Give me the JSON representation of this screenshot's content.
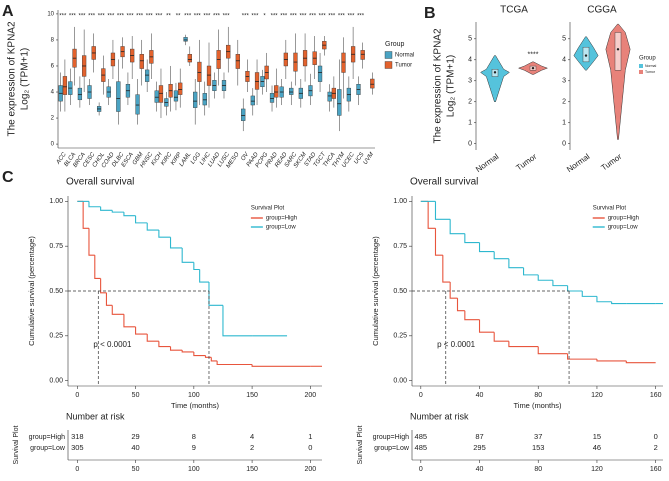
{
  "chart_data": [
    {
      "type": "box",
      "panel_label": "A",
      "ylabel": [
        "The expression of KPNA2",
        "Log₂ (TPM+1)"
      ],
      "categories": [
        "ACC",
        "BLCA",
        "BRCA",
        "CESC",
        "CHOL",
        "COAD",
        "DLBC",
        "ESCA",
        "GBM",
        "HNSC",
        "KICH",
        "KIRC",
        "KIRP",
        "LAML",
        "LGG",
        "LIHC",
        "LUAD",
        "LUSC",
        "MESO",
        "OV",
        "PAAD",
        "PCPG",
        "PRAD",
        "READ",
        "SARC",
        "SKCM",
        "STAD",
        "TGCT",
        "THCA",
        "THYM",
        "UCEC",
        "UCS",
        "UVM"
      ],
      "significance": [
        "***",
        "***",
        "***",
        "***",
        "***",
        "***",
        "***",
        "***",
        "***",
        "***",
        "***",
        "**",
        "**",
        "***",
        "***",
        "***",
        "***",
        "***",
        null,
        "***",
        "***",
        "*",
        "***",
        "***",
        "***",
        "***",
        "***",
        "***",
        "***",
        "***",
        "***",
        "***",
        null
      ],
      "ylim": [
        -0.3,
        10.3
      ],
      "yticks": [
        0,
        2,
        4,
        6,
        8,
        10
      ],
      "legend_title": "Group",
      "series": [
        {
          "name": "Normal",
          "color": "#4aa3c3",
          "values": [
            [
              2.5,
              3.3,
              3.9,
              4.5,
              5.5
            ],
            [
              3.0,
              3.8,
              4.3,
              4.8,
              5.8
            ],
            [
              2.8,
              3.4,
              3.8,
              4.3,
              5.2
            ],
            [
              3.0,
              3.5,
              4.0,
              4.5,
              5.0
            ],
            [
              2.2,
              2.5,
              2.7,
              2.9,
              3.2
            ],
            [
              3.0,
              3.6,
              4.0,
              4.4,
              5.0
            ],
            [
              1.5,
              2.5,
              3.5,
              4.8,
              6.5
            ],
            [
              3.0,
              3.6,
              4.1,
              4.6,
              5.5
            ],
            [
              1.5,
              2.3,
              3.0,
              3.8,
              5.0
            ],
            [
              4.0,
              4.8,
              5.3,
              5.7,
              6.5
            ],
            [
              2.5,
              3.2,
              3.6,
              4.1,
              4.8
            ],
            [
              2.2,
              2.9,
              3.2,
              3.5,
              4.0
            ],
            [
              2.6,
              3.3,
              3.6,
              4.1,
              4.7
            ],
            [
              7.6,
              7.9,
              8.0,
              8.2,
              8.4
            ],
            [
              1.5,
              2.8,
              3.3,
              4.0,
              5.0
            ],
            [
              2.2,
              3.0,
              3.4,
              3.9,
              4.8
            ],
            [
              3.5,
              4.1,
              4.5,
              4.9,
              5.5
            ],
            [
              3.5,
              4.1,
              4.5,
              4.9,
              5.5
            ],
            null,
            [
              1.0,
              1.8,
              2.2,
              2.7,
              3.5
            ],
            [
              2.2,
              3.0,
              3.3,
              3.7,
              4.3
            ],
            [
              3.8,
              4.4,
              4.8,
              5.2,
              5.7
            ],
            [
              2.5,
              3.2,
              3.5,
              3.9,
              4.5
            ],
            [
              3.0,
              3.6,
              4.0,
              4.4,
              5.0
            ],
            [
              3.0,
              3.8,
              4.0,
              4.3,
              4.8
            ],
            [
              2.8,
              3.5,
              3.9,
              4.3,
              5.0
            ],
            [
              3.0,
              3.7,
              4.1,
              4.5,
              5.4
            ],
            [
              4.0,
              4.8,
              5.5,
              6.0,
              7.0
            ],
            [
              2.5,
              3.3,
              3.7,
              4.0,
              4.6
            ],
            [
              1.0,
              2.2,
              3.1,
              4.2,
              6.5
            ],
            [
              2.5,
              3.3,
              3.8,
              4.3,
              5.2
            ],
            [
              3.0,
              3.8,
              4.2,
              4.6,
              5.2
            ],
            null
          ]
        },
        {
          "name": "Tumor",
          "color": "#e3622d",
          "values": [
            [
              2.5,
              3.8,
              4.4,
              5.2,
              6.5
            ],
            [
              4.5,
              5.9,
              6.6,
              7.3,
              9.0
            ],
            [
              4.0,
              5.2,
              6.0,
              6.8,
              8.8
            ],
            [
              5.5,
              6.5,
              7.0,
              7.5,
              8.5
            ],
            [
              3.8,
              4.8,
              5.3,
              5.8,
              6.8
            ],
            [
              5.0,
              6.0,
              6.5,
              7.0,
              8.0
            ],
            [
              5.8,
              6.7,
              7.1,
              7.5,
              8.2
            ],
            [
              5.0,
              6.3,
              6.8,
              7.3,
              8.3
            ],
            [
              4.5,
              5.8,
              6.4,
              6.9,
              8.0
            ],
            [
              5.0,
              6.2,
              6.7,
              7.2,
              8.5
            ],
            [
              2.0,
              3.2,
              3.9,
              4.5,
              5.8
            ],
            [
              2.5,
              3.6,
              4.1,
              4.6,
              6.0
            ],
            [
              2.8,
              3.8,
              4.2,
              4.7,
              5.8
            ],
            [
              6.0,
              6.3,
              6.5,
              6.9,
              7.5
            ],
            [
              3.0,
              4.8,
              5.5,
              6.3,
              8.0
            ],
            [
              2.8,
              4.5,
              5.3,
              6.0,
              7.8
            ],
            [
              4.5,
              5.8,
              6.5,
              7.2,
              8.8
            ],
            [
              5.5,
              6.6,
              7.1,
              7.6,
              9.0
            ],
            [
              4.5,
              5.8,
              6.4,
              6.9,
              8.0
            ],
            [
              4.0,
              4.8,
              5.2,
              5.6,
              6.5
            ],
            [
              3.0,
              4.2,
              4.8,
              5.5,
              6.5
            ],
            [
              4.0,
              5.0,
              5.5,
              6.0,
              7.0
            ],
            [
              2.8,
              3.6,
              4.0,
              4.5,
              5.8
            ],
            [
              5.0,
              6.0,
              6.5,
              7.0,
              8.0
            ],
            [
              4.5,
              5.6,
              6.3,
              7.0,
              8.5
            ],
            [
              4.8,
              6.0,
              6.6,
              7.2,
              8.5
            ],
            [
              5.0,
              6.1,
              6.6,
              7.1,
              8.3
            ],
            [
              6.8,
              7.3,
              7.6,
              7.9,
              8.3
            ],
            [
              2.8,
              3.5,
              3.9,
              4.3,
              5.2
            ],
            [
              3.5,
              5.5,
              6.3,
              7.0,
              8.2
            ],
            [
              5.0,
              6.3,
              6.9,
              7.5,
              9.0
            ],
            [
              5.8,
              6.5,
              6.9,
              7.2,
              7.8
            ],
            [
              3.8,
              4.3,
              4.6,
              5.0,
              5.5
            ]
          ]
        }
      ]
    },
    {
      "type": "violin",
      "panel_label": "B",
      "title": "TCGA",
      "ylabel": [
        "The expression of KPNA2",
        "Log₂ (TPM+1)"
      ],
      "categories": [
        "Normal",
        "Tumor"
      ],
      "colors": [
        "#55c3dc",
        "#e8827a"
      ],
      "significance": [
        null,
        "****"
      ],
      "ylim": [
        -0.3,
        5.8
      ],
      "yticks": [
        0,
        1,
        2,
        3,
        4,
        5
      ],
      "values": [
        [
          2.0,
          3.2,
          3.4,
          3.55,
          4.2
        ],
        [
          3.3,
          3.5,
          3.6,
          3.7,
          3.9
        ]
      ]
    },
    {
      "type": "violin",
      "title": "CGGA",
      "categories": [
        "Normal",
        "Tumor"
      ],
      "colors": [
        "#55c3dc",
        "#e8827a"
      ],
      "legend_title": "Group",
      "ylim": [
        -0.3,
        5.8
      ],
      "yticks": [
        0,
        1,
        2,
        3,
        4,
        5
      ],
      "values": [
        [
          3.5,
          3.9,
          4.2,
          4.6,
          5.1
        ],
        [
          0.2,
          3.5,
          4.5,
          5.3,
          5.7
        ]
      ]
    },
    {
      "type": "km",
      "panel_label": "C",
      "title": "Overall survival",
      "xlabel": "Time (months)",
      "ylabel": "Cumulative survival (percentage)",
      "annotation": "p < 0.0001",
      "legend_title": "Survival Plot",
      "xlim": [
        -8,
        210
      ],
      "xticks": [
        0,
        50,
        100,
        150,
        200
      ],
      "ylim": [
        -0.03,
        1.03
      ],
      "yticks": [
        {
          "value": 0,
          "label": "0.00"
        },
        0.25,
        {
          "value": 0.5,
          "label": "0.50"
        },
        0.75,
        {
          "value": 1,
          "label": "1.00"
        }
      ],
      "medians": [
        18,
        113
      ],
      "series": [
        {
          "name": "group=High",
          "color": "#e8553d",
          "x": [
            0,
            5,
            10,
            15,
            20,
            25,
            30,
            40,
            50,
            60,
            70,
            80,
            90,
            100,
            110,
            115,
            120,
            150,
            200,
            210
          ],
          "values": [
            1,
            0.85,
            0.7,
            0.57,
            0.49,
            0.42,
            0.37,
            0.3,
            0.26,
            0.22,
            0.19,
            0.17,
            0.16,
            0.14,
            0.13,
            0.11,
            0.09,
            0.08,
            0.08,
            0.08
          ]
        },
        {
          "name": "group=Low",
          "color": "#2eb8cf",
          "x": [
            0,
            10,
            20,
            30,
            40,
            50,
            60,
            70,
            80,
            90,
            100,
            105,
            113,
            125,
            150,
            180
          ],
          "values": [
            1,
            0.97,
            0.95,
            0.94,
            0.92,
            0.88,
            0.84,
            0.8,
            0.74,
            0.66,
            0.62,
            0.55,
            0.42,
            0.25,
            0.25,
            0.25
          ]
        }
      ],
      "risk_table": {
        "title": "Number at risk",
        "rows": [
          [
            318,
            29,
            8,
            4,
            1
          ],
          [
            305,
            40,
            9,
            2,
            0
          ]
        ]
      }
    },
    {
      "type": "km",
      "title": "Overall survival",
      "xlabel": "Time (months)",
      "ylabel": "Cumulative survival (percentage)",
      "annotation": "p < 0.0001",
      "legend_title": "Survival Plot",
      "xlim": [
        -6,
        165
      ],
      "xticks": [
        0,
        40,
        80,
        120,
        160
      ],
      "ylim": [
        -0.03,
        1.03
      ],
      "yticks": [
        {
          "value": 0,
          "label": "0.00"
        },
        0.25,
        {
          "value": 0.5,
          "label": "0.50"
        },
        0.75,
        {
          "value": 1,
          "label": "1.00"
        }
      ],
      "medians": [
        17,
        101
      ],
      "series": [
        {
          "name": "group=High",
          "color": "#e8553d",
          "x": [
            0,
            5,
            10,
            15,
            20,
            25,
            30,
            40,
            50,
            60,
            80,
            100,
            120,
            140,
            160
          ],
          "values": [
            1,
            0.85,
            0.7,
            0.55,
            0.46,
            0.39,
            0.34,
            0.27,
            0.22,
            0.19,
            0.15,
            0.12,
            0.11,
            0.1,
            0.1
          ]
        },
        {
          "name": "group=Low",
          "color": "#2eb8cf",
          "x": [
            0,
            10,
            20,
            30,
            40,
            50,
            60,
            70,
            80,
            90,
            100,
            110,
            120,
            130,
            140,
            160,
            165
          ],
          "values": [
            1,
            0.9,
            0.82,
            0.77,
            0.72,
            0.68,
            0.63,
            0.59,
            0.56,
            0.53,
            0.5,
            0.47,
            0.44,
            0.43,
            0.43,
            0.43,
            0.43
          ]
        }
      ],
      "risk_table": {
        "title": "Number at risk",
        "rows": [
          [
            485,
            87,
            37,
            15,
            0
          ],
          [
            485,
            295,
            153,
            46,
            2
          ]
        ]
      }
    }
  ]
}
